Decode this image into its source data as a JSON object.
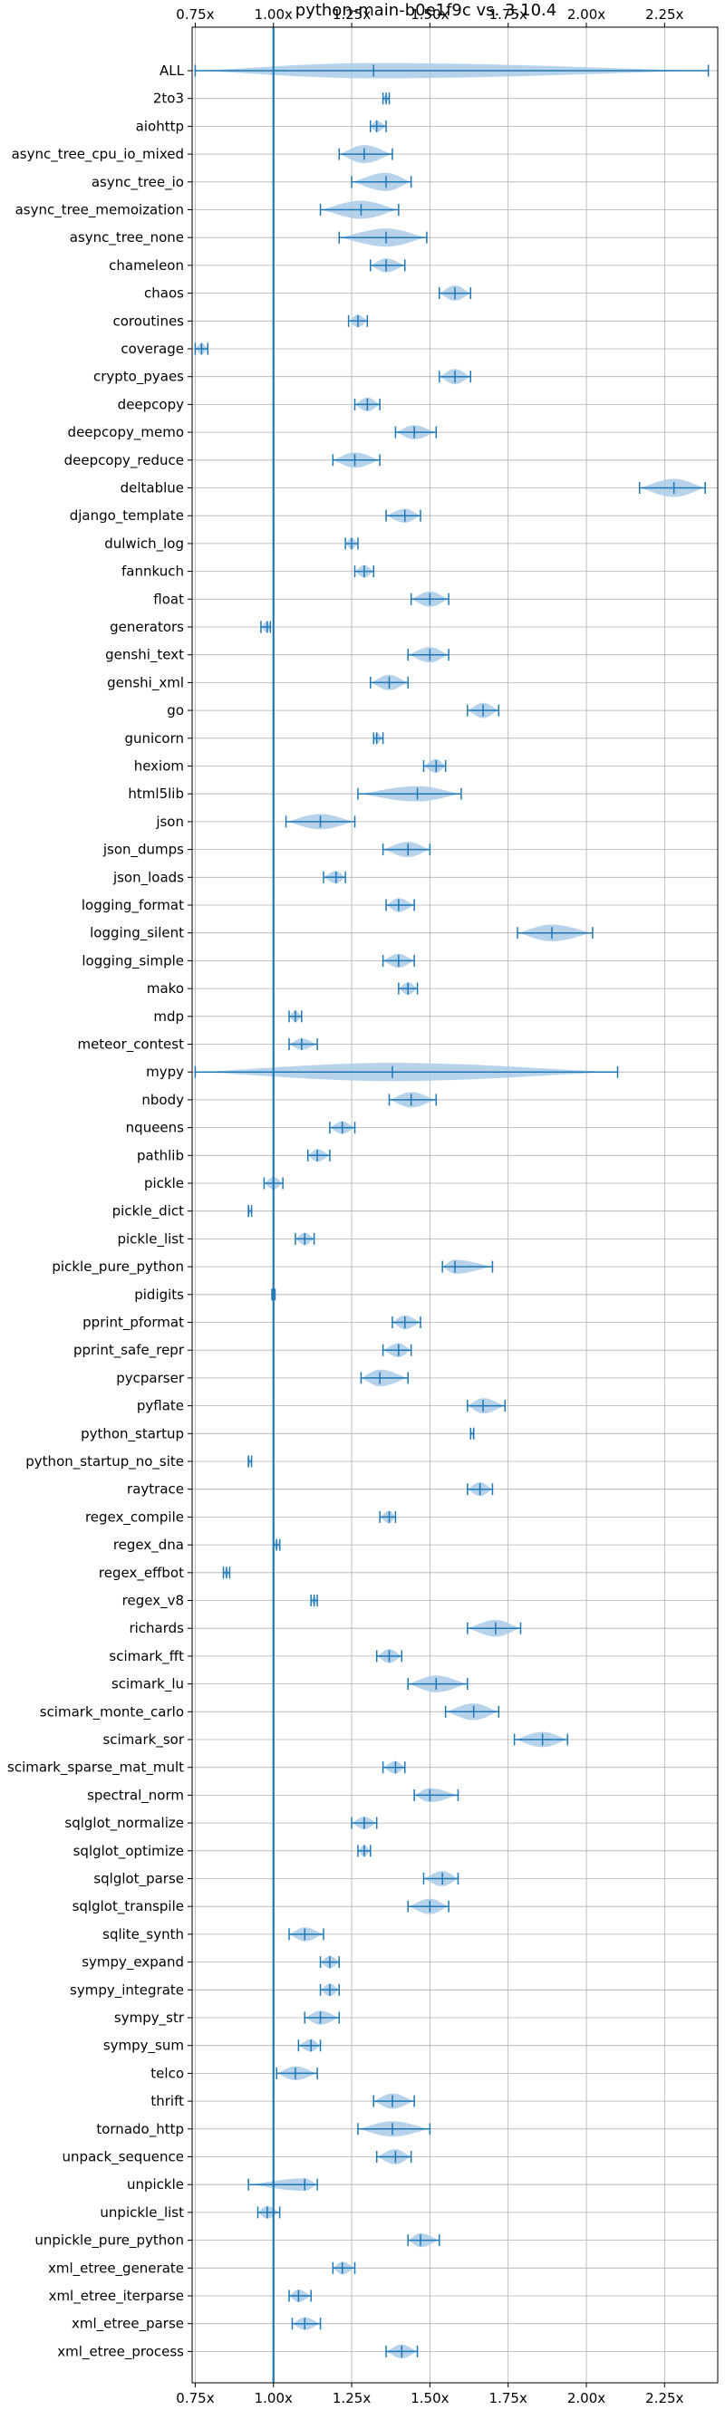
{
  "chart_data": {
    "type": "violin",
    "title": "python-main-b0e1f9c vs. 3.10.4",
    "xlabel": "",
    "ylabel": "",
    "xlim": [
      0.74,
      2.42
    ],
    "xticks": [
      0.75,
      1.0,
      1.25,
      1.5,
      1.75,
      2.0,
      2.25
    ],
    "xtick_labels": [
      "0.75x",
      "1.00x",
      "1.25x",
      "1.50x",
      "1.75x",
      "2.00x",
      "2.25x"
    ],
    "reference_line": 1.0,
    "grid": true,
    "colors": {
      "violin": "#a9cbe7",
      "lines": "#1f77b4",
      "grid": "#b0b0b0"
    },
    "benchmarks": [
      {
        "name": "ALL",
        "min": 0.75,
        "median": 1.32,
        "max": 2.39,
        "width": 0.55
      },
      {
        "name": "2to3",
        "min": 1.35,
        "median": 1.36,
        "max": 1.37,
        "width": 0.3
      },
      {
        "name": "aiohttp",
        "min": 1.31,
        "median": 1.33,
        "max": 1.36,
        "width": 0.4
      },
      {
        "name": "async_tree_cpu_io_mixed",
        "min": 1.21,
        "median": 1.29,
        "max": 1.38,
        "width": 0.65
      },
      {
        "name": "async_tree_io",
        "min": 1.25,
        "median": 1.36,
        "max": 1.44,
        "width": 0.65
      },
      {
        "name": "async_tree_memoization",
        "min": 1.15,
        "median": 1.28,
        "max": 1.4,
        "width": 0.65
      },
      {
        "name": "async_tree_none",
        "min": 1.21,
        "median": 1.36,
        "max": 1.49,
        "width": 0.65
      },
      {
        "name": "chameleon",
        "min": 1.31,
        "median": 1.36,
        "max": 1.42,
        "width": 0.5
      },
      {
        "name": "chaos",
        "min": 1.53,
        "median": 1.58,
        "max": 1.63,
        "width": 0.55
      },
      {
        "name": "coroutines",
        "min": 1.24,
        "median": 1.27,
        "max": 1.3,
        "width": 0.45
      },
      {
        "name": "coverage",
        "min": 0.75,
        "median": 0.77,
        "max": 0.79,
        "width": 0.4
      },
      {
        "name": "crypto_pyaes",
        "min": 1.53,
        "median": 1.58,
        "max": 1.63,
        "width": 0.55
      },
      {
        "name": "deepcopy",
        "min": 1.26,
        "median": 1.3,
        "max": 1.34,
        "width": 0.5
      },
      {
        "name": "deepcopy_memo",
        "min": 1.39,
        "median": 1.45,
        "max": 1.52,
        "width": 0.5
      },
      {
        "name": "deepcopy_reduce",
        "min": 1.19,
        "median": 1.26,
        "max": 1.34,
        "width": 0.55
      },
      {
        "name": "deltablue",
        "min": 2.17,
        "median": 2.28,
        "max": 2.38,
        "width": 0.65
      },
      {
        "name": "django_template",
        "min": 1.36,
        "median": 1.42,
        "max": 1.47,
        "width": 0.5
      },
      {
        "name": "dulwich_log",
        "min": 1.23,
        "median": 1.25,
        "max": 1.27,
        "width": 0.4
      },
      {
        "name": "fannkuch",
        "min": 1.26,
        "median": 1.29,
        "max": 1.32,
        "width": 0.45
      },
      {
        "name": "float",
        "min": 1.44,
        "median": 1.5,
        "max": 1.56,
        "width": 0.55
      },
      {
        "name": "generators",
        "min": 0.96,
        "median": 0.98,
        "max": 0.99,
        "width": 0.4
      },
      {
        "name": "genshi_text",
        "min": 1.43,
        "median": 1.5,
        "max": 1.56,
        "width": 0.55
      },
      {
        "name": "genshi_xml",
        "min": 1.31,
        "median": 1.37,
        "max": 1.43,
        "width": 0.55
      },
      {
        "name": "go",
        "min": 1.62,
        "median": 1.67,
        "max": 1.72,
        "width": 0.55
      },
      {
        "name": "gunicorn",
        "min": 1.32,
        "median": 1.33,
        "max": 1.35,
        "width": 0.4
      },
      {
        "name": "hexiom",
        "min": 1.48,
        "median": 1.52,
        "max": 1.55,
        "width": 0.5
      },
      {
        "name": "html5lib",
        "min": 1.27,
        "median": 1.46,
        "max": 1.6,
        "width": 0.55
      },
      {
        "name": "json",
        "min": 1.04,
        "median": 1.15,
        "max": 1.26,
        "width": 0.55
      },
      {
        "name": "json_dumps",
        "min": 1.35,
        "median": 1.43,
        "max": 1.5,
        "width": 0.55
      },
      {
        "name": "json_loads",
        "min": 1.16,
        "median": 1.2,
        "max": 1.23,
        "width": 0.45
      },
      {
        "name": "logging_format",
        "min": 1.36,
        "median": 1.4,
        "max": 1.45,
        "width": 0.5
      },
      {
        "name": "logging_silent",
        "min": 1.78,
        "median": 1.89,
        "max": 2.02,
        "width": 0.6
      },
      {
        "name": "logging_simple",
        "min": 1.35,
        "median": 1.4,
        "max": 1.45,
        "width": 0.5
      },
      {
        "name": "mako",
        "min": 1.4,
        "median": 1.43,
        "max": 1.46,
        "width": 0.45
      },
      {
        "name": "mdp",
        "min": 1.05,
        "median": 1.07,
        "max": 1.09,
        "width": 0.4
      },
      {
        "name": "meteor_contest",
        "min": 1.05,
        "median": 1.09,
        "max": 1.14,
        "width": 0.4
      },
      {
        "name": "mypy",
        "min": 0.75,
        "median": 1.38,
        "max": 2.1,
        "width": 0.65
      },
      {
        "name": "nbody",
        "min": 1.37,
        "median": 1.44,
        "max": 1.52,
        "width": 0.55
      },
      {
        "name": "nqueens",
        "min": 1.18,
        "median": 1.22,
        "max": 1.26,
        "width": 0.45
      },
      {
        "name": "pathlib",
        "min": 1.11,
        "median": 1.14,
        "max": 1.18,
        "width": 0.45
      },
      {
        "name": "pickle",
        "min": 0.97,
        "median": 1.0,
        "max": 1.03,
        "width": 0.45
      },
      {
        "name": "pickle_dict",
        "min": 0.92,
        "median": 0.92,
        "max": 0.93,
        "width": 0.3
      },
      {
        "name": "pickle_list",
        "min": 1.07,
        "median": 1.1,
        "max": 1.13,
        "width": 0.45
      },
      {
        "name": "pickle_pure_python",
        "min": 1.54,
        "median": 1.58,
        "max": 1.7,
        "width": 0.5
      },
      {
        "name": "pidigits",
        "min": 0.995,
        "median": 1.0,
        "max": 1.005,
        "width": 0.2
      },
      {
        "name": "pprint_pformat",
        "min": 1.38,
        "median": 1.42,
        "max": 1.47,
        "width": 0.5
      },
      {
        "name": "pprint_safe_repr",
        "min": 1.35,
        "median": 1.4,
        "max": 1.44,
        "width": 0.5
      },
      {
        "name": "pycparser",
        "min": 1.28,
        "median": 1.34,
        "max": 1.43,
        "width": 0.6
      },
      {
        "name": "pyflate",
        "min": 1.62,
        "median": 1.67,
        "max": 1.74,
        "width": 0.55
      },
      {
        "name": "python_startup",
        "min": 1.63,
        "median": 1.64,
        "max": 1.64,
        "width": 0.3
      },
      {
        "name": "python_startup_no_site",
        "min": 0.92,
        "median": 0.92,
        "max": 0.93,
        "width": 0.3
      },
      {
        "name": "raytrace",
        "min": 1.62,
        "median": 1.66,
        "max": 1.7,
        "width": 0.5
      },
      {
        "name": "regex_compile",
        "min": 1.34,
        "median": 1.37,
        "max": 1.39,
        "width": 0.45
      },
      {
        "name": "regex_dna",
        "min": 1.0,
        "median": 1.01,
        "max": 1.02,
        "width": 0.3
      },
      {
        "name": "regex_effbot",
        "min": 0.84,
        "median": 0.85,
        "max": 0.86,
        "width": 0.3
      },
      {
        "name": "regex_v8",
        "min": 1.12,
        "median": 1.13,
        "max": 1.14,
        "width": 0.3
      },
      {
        "name": "richards",
        "min": 1.62,
        "median": 1.71,
        "max": 1.79,
        "width": 0.6
      },
      {
        "name": "scimark_fft",
        "min": 1.33,
        "median": 1.37,
        "max": 1.41,
        "width": 0.5
      },
      {
        "name": "scimark_lu",
        "min": 1.43,
        "median": 1.52,
        "max": 1.62,
        "width": 0.6
      },
      {
        "name": "scimark_monte_carlo",
        "min": 1.55,
        "median": 1.64,
        "max": 1.72,
        "width": 0.6
      },
      {
        "name": "scimark_sor",
        "min": 1.77,
        "median": 1.86,
        "max": 1.94,
        "width": 0.55
      },
      {
        "name": "scimark_sparse_mat_mult",
        "min": 1.35,
        "median": 1.39,
        "max": 1.42,
        "width": 0.45
      },
      {
        "name": "spectral_norm",
        "min": 1.45,
        "median": 1.5,
        "max": 1.59,
        "width": 0.5
      },
      {
        "name": "sqlglot_normalize",
        "min": 1.25,
        "median": 1.29,
        "max": 1.33,
        "width": 0.45
      },
      {
        "name": "sqlglot_optimize",
        "min": 1.27,
        "median": 1.29,
        "max": 1.31,
        "width": 0.4
      },
      {
        "name": "sqlglot_parse",
        "min": 1.48,
        "median": 1.54,
        "max": 1.59,
        "width": 0.55
      },
      {
        "name": "sqlglot_transpile",
        "min": 1.43,
        "median": 1.5,
        "max": 1.56,
        "width": 0.55
      },
      {
        "name": "sqlite_synth",
        "min": 1.05,
        "median": 1.1,
        "max": 1.16,
        "width": 0.5
      },
      {
        "name": "sympy_expand",
        "min": 1.15,
        "median": 1.18,
        "max": 1.21,
        "width": 0.45
      },
      {
        "name": "sympy_integrate",
        "min": 1.15,
        "median": 1.18,
        "max": 1.21,
        "width": 0.45
      },
      {
        "name": "sympy_str",
        "min": 1.1,
        "median": 1.15,
        "max": 1.21,
        "width": 0.5
      },
      {
        "name": "sympy_sum",
        "min": 1.08,
        "median": 1.12,
        "max": 1.15,
        "width": 0.45
      },
      {
        "name": "telco",
        "min": 1.01,
        "median": 1.07,
        "max": 1.14,
        "width": 0.5
      },
      {
        "name": "thrift",
        "min": 1.32,
        "median": 1.38,
        "max": 1.45,
        "width": 0.55
      },
      {
        "name": "tornado_http",
        "min": 1.27,
        "median": 1.38,
        "max": 1.5,
        "width": 0.55
      },
      {
        "name": "unpack_sequence",
        "min": 1.33,
        "median": 1.39,
        "max": 1.44,
        "width": 0.55
      },
      {
        "name": "unpickle",
        "min": 0.92,
        "median": 1.1,
        "max": 1.14,
        "width": 0.45
      },
      {
        "name": "unpickle_list",
        "min": 0.95,
        "median": 0.98,
        "max": 1.02,
        "width": 0.45
      },
      {
        "name": "unpickle_pure_python",
        "min": 1.43,
        "median": 1.47,
        "max": 1.53,
        "width": 0.5
      },
      {
        "name": "xml_etree_generate",
        "min": 1.19,
        "median": 1.22,
        "max": 1.26,
        "width": 0.45
      },
      {
        "name": "xml_etree_iterparse",
        "min": 1.05,
        "median": 1.08,
        "max": 1.12,
        "width": 0.45
      },
      {
        "name": "xml_etree_parse",
        "min": 1.06,
        "median": 1.1,
        "max": 1.15,
        "width": 0.45
      },
      {
        "name": "xml_etree_process",
        "min": 1.36,
        "median": 1.41,
        "max": 1.46,
        "width": 0.5
      }
    ]
  }
}
